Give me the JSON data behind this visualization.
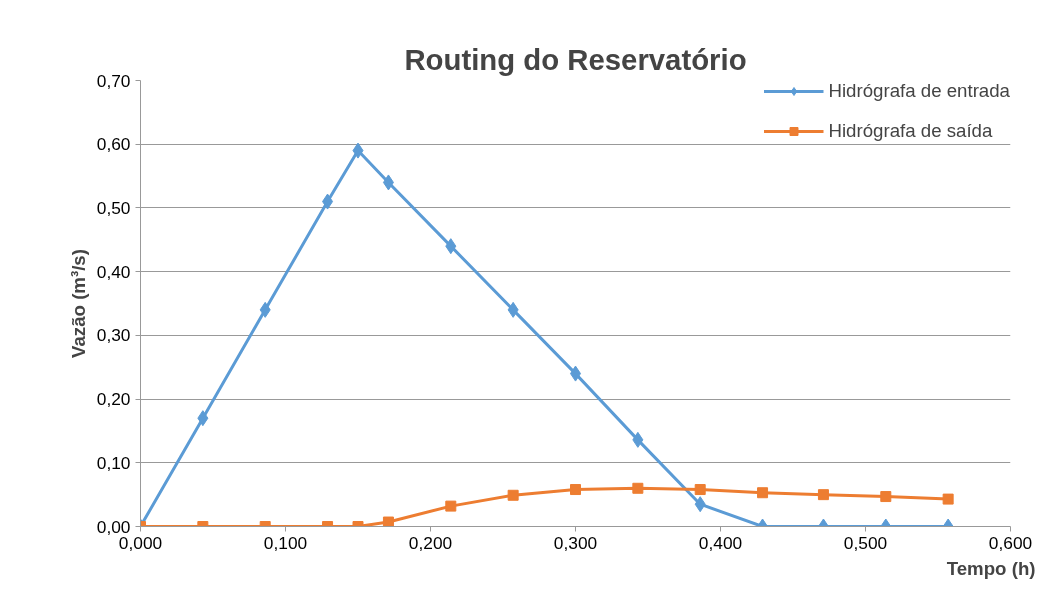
{
  "chart_data": {
    "type": "line",
    "title": "Routing do Reservatório",
    "xlabel": "Tempo (h)",
    "ylabel": "Vazão (m³/s)",
    "x": [
      0,
      0.043,
      0.086,
      0.129,
      0.15,
      0.171,
      0.214,
      0.257,
      0.3,
      0.343,
      0.386,
      0.429,
      0.471,
      0.514,
      0.557
    ],
    "series": [
      {
        "name": "Hidrógrafa de entrada",
        "color": "#5b9bd5",
        "marker": "diamond",
        "values": [
          0,
          0.17,
          0.34,
          0.51,
          0.59,
          0.54,
          0.44,
          0.34,
          0.24,
          0.136,
          0.035,
          0,
          0,
          0,
          0
        ]
      },
      {
        "name": "Hidrógrafa de saída",
        "color": "#ed7d31",
        "marker": "square",
        "values": [
          0,
          0,
          0,
          0,
          0,
          0.007,
          0.032,
          0.049,
          0.058,
          0.06,
          0.058,
          0.053,
          0.05,
          0.047,
          0.043
        ]
      }
    ],
    "xlim": [
      0,
      0.6
    ],
    "ylim": [
      0,
      0.7
    ],
    "xticks": [
      {
        "value": 0,
        "label": "0,000"
      },
      {
        "value": 0.1,
        "label": "0,100"
      },
      {
        "value": 0.2,
        "label": "0,200"
      },
      {
        "value": 0.3,
        "label": "0,300"
      },
      {
        "value": 0.4,
        "label": "0,400"
      },
      {
        "value": 0.5,
        "label": "0,500"
      },
      {
        "value": 0.6,
        "label": "0,600"
      }
    ],
    "yticks": [
      {
        "value": 0,
        "label": "0,00"
      },
      {
        "value": 0.1,
        "label": "0,10"
      },
      {
        "value": 0.2,
        "label": "0,20"
      },
      {
        "value": 0.3,
        "label": "0,30"
      },
      {
        "value": 0.4,
        "label": "0,40"
      },
      {
        "value": 0.5,
        "label": "0,50"
      },
      {
        "value": 0.6,
        "label": "0,60"
      },
      {
        "value": 0.7,
        "label": "0,70"
      }
    ],
    "grid": "y",
    "legend": "top right",
    "line_style": "solid"
  }
}
